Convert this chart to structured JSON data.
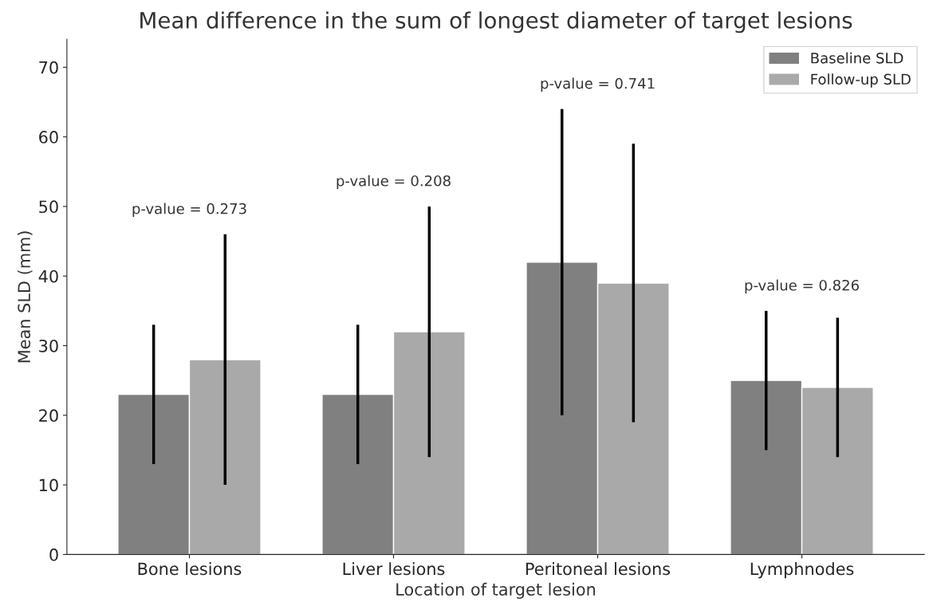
{
  "chart_data": {
    "type": "bar",
    "title": "Mean difference in the sum of longest diameter of target lesions",
    "xlabel": "Location of target lesion",
    "ylabel": "Mean SLD (mm)",
    "categories": [
      "Bone lesions",
      "Liver lesions",
      "Peritoneal lesions",
      "Lymphnodes"
    ],
    "series": [
      {
        "name": "Baseline SLD",
        "color": "#808080",
        "values": [
          23,
          23,
          42,
          25
        ],
        "errors": [
          10,
          10,
          22,
          10
        ]
      },
      {
        "name": "Follow-up SLD",
        "color": "#a9a9a9",
        "values": [
          28,
          32,
          39,
          24
        ],
        "errors": [
          18,
          18,
          20,
          10
        ]
      }
    ],
    "ylim": [
      0,
      74
    ],
    "yticks": [
      0,
      10,
      20,
      30,
      40,
      50,
      60,
      70
    ],
    "annotations": [
      "p-value = 0.273",
      "p-value = 0.208",
      "p-value = 0.741",
      "p-value = 0.826"
    ],
    "legend": "top right",
    "grid": false
  }
}
